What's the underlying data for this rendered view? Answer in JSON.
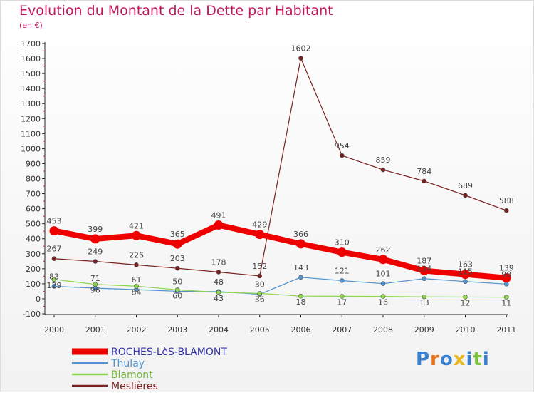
{
  "title": "Evolution du Montant de la Dette par Habitant",
  "subtitle": "(en €)",
  "brand": {
    "text": "Proxiti",
    "letter_colors": [
      "#3a7fd0",
      "#e8721c",
      "#3a7fd0",
      "#e8b81c",
      "#3a7fd0",
      "#7cc23a",
      "#3a7fd0"
    ]
  },
  "chart_data": {
    "type": "line",
    "categories": [
      "2000",
      "2001",
      "2002",
      "2003",
      "2004",
      "2005",
      "2006",
      "2007",
      "2008",
      "2009",
      "2010",
      "2011"
    ],
    "ylim": [
      -100,
      1700
    ],
    "ytick_step": 100,
    "grid": false,
    "legend_position": "bottom-left",
    "series": [
      {
        "name": "ROCHES-LèS-BLAMONT",
        "color": "#ee0000",
        "legend_text_color": "#3333aa",
        "width": 8,
        "labels_above": true,
        "values": [
          453,
          399,
          421,
          365,
          491,
          429,
          366,
          310,
          262,
          187,
          163,
          139
        ]
      },
      {
        "name": "Thulay",
        "color": "#4f93d0",
        "legend_text_color": "#4f93d0",
        "width": 1.2,
        "labels_above": true,
        "values": [
          83,
          71,
          61,
          50,
          48,
          30,
          143,
          121,
          101,
          134,
          115,
          98
        ]
      },
      {
        "name": "Blamont",
        "color": "#8fd64f",
        "legend_text_color": "#70b83a",
        "width": 1.2,
        "labels_above": false,
        "values": [
          129,
          96,
          84,
          60,
          43,
          36,
          18,
          17,
          16,
          13,
          12,
          11
        ]
      },
      {
        "name": "Meslières",
        "color": "#7a2020",
        "legend_text_color": "#7a2020",
        "width": 1.2,
        "labels_above": true,
        "values": [
          267,
          249,
          226,
          203,
          178,
          152,
          1602,
          954,
          859,
          784,
          689,
          588
        ]
      }
    ]
  }
}
